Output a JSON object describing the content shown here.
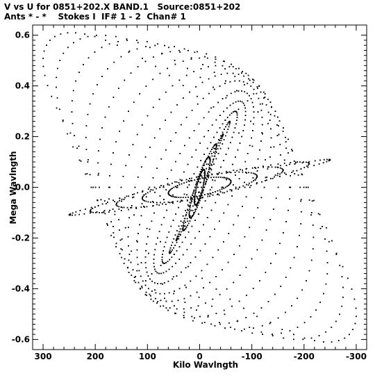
{
  "header": {
    "line1": "V vs U for 0851+202.X BAND.1   Source:0851+202",
    "line2": "Ants * - *    Stokes I  IF# 1 - 2  Chan# 1"
  },
  "chart_data": {
    "type": "scatter",
    "title": "V vs U for 0851+202.X BAND.1   Source:0851+202",
    "subtitle": "Ants * - *    Stokes I  IF# 1 - 2  Chan# 1",
    "xlabel": "Kilo Wavlngth",
    "ylabel": "Mega Wavlngth",
    "xlim": [
      320,
      -320
    ],
    "ylim": [
      -0.64,
      0.64
    ],
    "x_ticks": [
      300,
      200,
      100,
      0,
      -100,
      -200,
      -300
    ],
    "x_tick_labels": [
      "300",
      "200",
      "100",
      "0",
      "-100",
      "-200",
      "-300"
    ],
    "y_ticks": [
      0.6,
      0.4,
      0.2,
      0.0,
      -0.2,
      -0.4,
      -0.6
    ],
    "y_tick_labels": [
      "0.6",
      "0.4",
      "0.2",
      "0.0",
      "-0.2",
      "-0.4",
      "-0.6"
    ],
    "grid": false,
    "legend": "none",
    "marker_color": "#000000",
    "tracks": [
      {
        "a": 10,
        "b": 0.07,
        "phi": 0.9
      },
      {
        "a": 20,
        "b": 0.12,
        "phi": 1.1
      },
      {
        "a": 32,
        "b": 0.17,
        "phi": 1.3
      },
      {
        "a": 45,
        "b": 0.21,
        "phi": 1.5
      },
      {
        "a": 58,
        "b": 0.26,
        "phi": 1.7
      },
      {
        "a": 72,
        "b": 0.3,
        "phi": 1.9
      },
      {
        "a": 88,
        "b": 0.34,
        "phi": 2.1
      },
      {
        "a": 104,
        "b": 0.38,
        "phi": 2.3
      },
      {
        "a": 120,
        "b": 0.42,
        "phi": 2.5
      },
      {
        "a": 137,
        "b": 0.45,
        "phi": 2.7
      },
      {
        "a": 155,
        "b": 0.48,
        "phi": 2.9
      },
      {
        "a": 174,
        "b": 0.51,
        "phi": 3.1
      },
      {
        "a": 195,
        "b": 0.54,
        "phi": 3.3
      },
      {
        "a": 218,
        "b": 0.56,
        "phi": 3.5
      },
      {
        "a": 245,
        "b": 0.58,
        "phi": 3.7
      },
      {
        "a": 275,
        "b": 0.6,
        "phi": 3.9
      },
      {
        "a": 300,
        "b": 0.61,
        "phi": 4.1
      },
      {
        "a": 60,
        "b": 0.04,
        "phi": 0.6
      },
      {
        "a": 110,
        "b": 0.06,
        "phi": 0.8
      },
      {
        "a": 160,
        "b": 0.08,
        "phi": 1.0
      },
      {
        "a": 210,
        "b": 0.1,
        "phi": 1.2
      },
      {
        "a": 250,
        "b": 0.11,
        "phi": 1.4
      }
    ]
  }
}
